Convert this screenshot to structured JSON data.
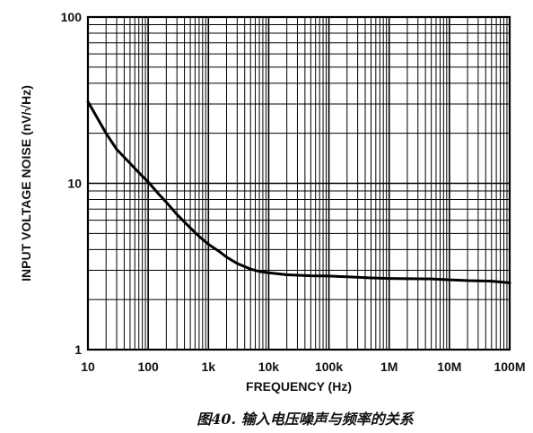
{
  "chart_data": {
    "type": "line",
    "title": "",
    "xlabel": "FREQUENCY (Hz)",
    "ylabel": "INPUT VOLTAGE NOISE (nV/√Hz)",
    "x_scale": "log",
    "y_scale": "log",
    "xlim": [
      10,
      100000000
    ],
    "ylim": [
      1,
      100
    ],
    "x_tick_labels": [
      "10",
      "100",
      "1k",
      "10k",
      "100k",
      "1M",
      "10M",
      "100M"
    ],
    "y_tick_labels": [
      "1",
      "10",
      "100"
    ],
    "grid": true,
    "caption": "图40. 输入电压噪声与频率的关系",
    "series": [
      {
        "x": [
          10,
          15,
          20,
          30,
          50,
          70,
          100,
          150,
          200,
          300,
          500,
          700,
          1000,
          1500,
          2000,
          3000,
          5000,
          7000,
          10000,
          20000,
          50000,
          100000,
          200000,
          500000,
          1000000,
          2000000,
          5000000,
          10000000,
          20000000,
          50000000,
          100000000
        ],
        "y": [
          31,
          24,
          20,
          16,
          13.2,
          11.6,
          10.2,
          8.6,
          7.7,
          6.5,
          5.4,
          4.8,
          4.3,
          3.9,
          3.6,
          3.3,
          3.05,
          2.95,
          2.9,
          2.82,
          2.78,
          2.77,
          2.74,
          2.7,
          2.68,
          2.67,
          2.66,
          2.63,
          2.6,
          2.58,
          2.52
        ]
      }
    ]
  }
}
